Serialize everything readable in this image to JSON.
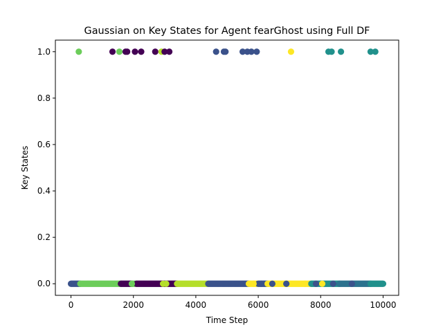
{
  "chart_data": {
    "type": "scatter",
    "title": "Gaussian on Key States for Agent fearGhost using Full DF",
    "xlabel": "Time Step",
    "ylabel": "Key States",
    "xlim": [
      -500,
      10500
    ],
    "ylim": [
      -0.05,
      1.05
    ],
    "xticks": [
      0,
      2000,
      4000,
      6000,
      8000,
      10000
    ],
    "yticks": [
      0.0,
      0.2,
      0.4,
      0.6,
      0.8,
      1.0
    ],
    "xtick_labels": [
      "0",
      "2000",
      "4000",
      "6000",
      "8000",
      "10000"
    ],
    "ytick_labels": [
      "0.0",
      "0.2",
      "0.4",
      "0.6",
      "0.8",
      "1.0"
    ],
    "grid": false,
    "legend": false,
    "marker_colors": {
      "navy_blue": "#3b528b",
      "light_green": "#6ccd5a",
      "dark_purple": "#440154",
      "lime": "#b5de2b",
      "yellow": "#fde725",
      "teal": "#21918c",
      "blue_teal": "#2c728e"
    },
    "points_top": [
      {
        "x": 250,
        "y": 1,
        "color": "#6ccd5a"
      },
      {
        "x": 1330,
        "y": 1,
        "color": "#440154"
      },
      {
        "x": 1550,
        "y": 1,
        "color": "#6ccd5a"
      },
      {
        "x": 1750,
        "y": 1,
        "color": "#440154"
      },
      {
        "x": 1800,
        "y": 1,
        "color": "#440154"
      },
      {
        "x": 2050,
        "y": 1,
        "color": "#440154"
      },
      {
        "x": 2250,
        "y": 1,
        "color": "#440154"
      },
      {
        "x": 2700,
        "y": 1,
        "color": "#440154"
      },
      {
        "x": 2900,
        "y": 1,
        "color": "#b5de2b"
      },
      {
        "x": 3000,
        "y": 1,
        "color": "#440154"
      },
      {
        "x": 3150,
        "y": 1,
        "color": "#440154"
      },
      {
        "x": 4650,
        "y": 1,
        "color": "#3b528b"
      },
      {
        "x": 4900,
        "y": 1,
        "color": "#3b528b"
      },
      {
        "x": 4950,
        "y": 1,
        "color": "#3b528b"
      },
      {
        "x": 5500,
        "y": 1,
        "color": "#3b528b"
      },
      {
        "x": 5650,
        "y": 1,
        "color": "#3b528b"
      },
      {
        "x": 5780,
        "y": 1,
        "color": "#3b528b"
      },
      {
        "x": 5950,
        "y": 1,
        "color": "#3b528b"
      },
      {
        "x": 7050,
        "y": 1,
        "color": "#fde725"
      },
      {
        "x": 8250,
        "y": 1,
        "color": "#21918c"
      },
      {
        "x": 8350,
        "y": 1,
        "color": "#21918c"
      },
      {
        "x": 8650,
        "y": 1,
        "color": "#21918c"
      },
      {
        "x": 9600,
        "y": 1,
        "color": "#21918c"
      },
      {
        "x": 9750,
        "y": 1,
        "color": "#21918c"
      }
    ],
    "bands_bottom": [
      {
        "x_start": 0,
        "x_end": 300,
        "y": 0,
        "color": "#3b528b"
      },
      {
        "x_start": 300,
        "x_end": 1600,
        "y": 0,
        "color": "#6ccd5a"
      },
      {
        "x_start": 1600,
        "x_end": 1950,
        "y": 0,
        "color": "#440154"
      },
      {
        "x_start": 1950,
        "x_end": 2100,
        "y": 0,
        "color": "#6ccd5a"
      },
      {
        "x_start": 2100,
        "x_end": 3400,
        "y": 0,
        "color": "#440154"
      },
      {
        "x_start": 3400,
        "x_end": 4400,
        "y": 0,
        "color": "#b5de2b"
      },
      {
        "x_start": 4400,
        "x_end": 5700,
        "y": 0,
        "color": "#3b528b"
      },
      {
        "x_start": 5700,
        "x_end": 6000,
        "y": 0,
        "color": "#fde725"
      },
      {
        "x_start": 6000,
        "x_end": 6300,
        "y": 0,
        "color": "#3b528b"
      },
      {
        "x_start": 6300,
        "x_end": 6900,
        "y": 0,
        "color": "#fde725"
      },
      {
        "x_start": 6900,
        "x_end": 7700,
        "y": 0,
        "color": "#fde725"
      },
      {
        "x_start": 7700,
        "x_end": 8600,
        "y": 0,
        "color": "#21918c"
      },
      {
        "x_start": 8600,
        "x_end": 9600,
        "y": 0,
        "color": "#2c728e"
      },
      {
        "x_start": 9600,
        "x_end": 10000,
        "y": 0,
        "color": "#21918c"
      }
    ],
    "points_bottom_extra": [
      {
        "x": 1950,
        "y": 0,
        "color": "#6ccd5a"
      },
      {
        "x": 2950,
        "y": 0,
        "color": "#b5de2b"
      },
      {
        "x": 3050,
        "y": 0,
        "color": "#b5de2b"
      },
      {
        "x": 5850,
        "y": 0,
        "color": "#fde725"
      },
      {
        "x": 6100,
        "y": 0,
        "color": "#3b528b"
      },
      {
        "x": 6450,
        "y": 0,
        "color": "#3b528b"
      },
      {
        "x": 6900,
        "y": 0,
        "color": "#3b528b"
      },
      {
        "x": 7500,
        "y": 0,
        "color": "#fde725"
      },
      {
        "x": 7850,
        "y": 0,
        "color": "#3b528b"
      },
      {
        "x": 8050,
        "y": 0,
        "color": "#fde725"
      },
      {
        "x": 8400,
        "y": 0,
        "color": "#3b528b"
      },
      {
        "x": 9000,
        "y": 0,
        "color": "#3b528b"
      }
    ]
  }
}
